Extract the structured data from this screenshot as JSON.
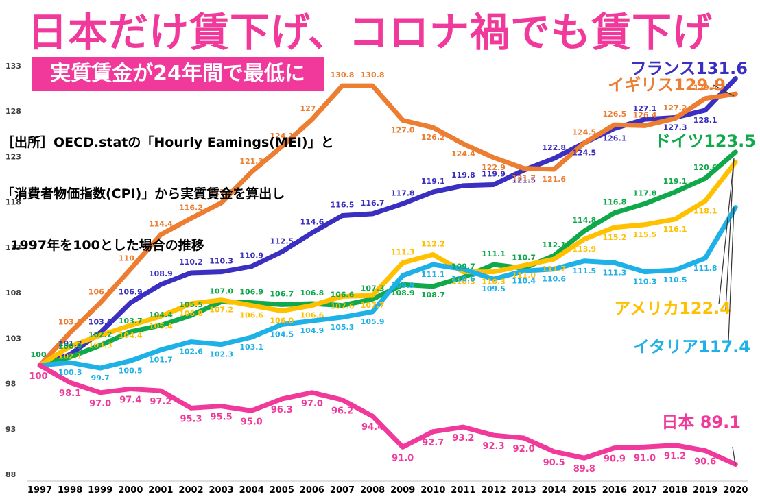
{
  "header": {
    "title": "日本だけ賃下げ、コロナ禍でも賃下げ",
    "subtitle": "実質賃金が24年間で最低に",
    "source_lines": [
      "［出所］OECD.statの「Hourly Eamings(MEI)」と",
      "「消費者物価指数(CPI)」から実質賃金を算出し",
      "  1997年を100とした場合の推移"
    ]
  },
  "chart_data": {
    "type": "line",
    "x": [
      "1997",
      "1998",
      "1999",
      "2000",
      "2001",
      "2002",
      "2003",
      "2004",
      "2005",
      "2006",
      "2007",
      "2008",
      "2009",
      "2010",
      "2011",
      "2012",
      "2013",
      "2014",
      "2015",
      "2016",
      "2017",
      "2018",
      "2019",
      "2020"
    ],
    "ylim": [
      88,
      133
    ],
    "yticks": [
      88,
      93,
      98,
      103,
      108,
      113,
      118,
      123,
      128,
      133
    ],
    "grid": false,
    "series": [
      {
        "name": "フランス",
        "color": "#3A2FC0",
        "end_label": "フランス131.6",
        "values": [
          100,
          101.2,
          103.6,
          106.9,
          108.9,
          110.2,
          110.3,
          110.9,
          112.5,
          114.6,
          116.5,
          116.7,
          117.8,
          119.1,
          119.8,
          119.9,
          121.5,
          122.8,
          124.5,
          126.1,
          127.1,
          127.3,
          128.1,
          131.6
        ]
      },
      {
        "name": "イギリス",
        "color": "#ED7D31",
        "end_label": "イギリス129.9",
        "values": [
          100,
          103.6,
          106.9,
          110.6,
          114.4,
          116.2,
          117.9,
          121.3,
          124.1,
          127.1,
          130.8,
          130.8,
          127.0,
          126.2,
          124.4,
          122.9,
          121.7,
          121.6,
          124.5,
          126.5,
          126.4,
          127.2,
          129.4,
          129.9
        ]
      },
      {
        "name": "ドイツ",
        "color": "#0FA84A",
        "end_label": "ドイツ123.5",
        "values": [
          100,
          100.9,
          102.2,
          103.7,
          104.4,
          105.5,
          107.0,
          106.9,
          106.7,
          106.8,
          106.6,
          107.3,
          108.9,
          108.7,
          109.7,
          111.1,
          110.7,
          112.1,
          114.8,
          116.8,
          117.8,
          119.1,
          120.6,
          123.5
        ]
      },
      {
        "name": "アメリカ",
        "color": "#FFC000",
        "end_label": "アメリカ122.4",
        "values": [
          100,
          102.1,
          103.3,
          104.4,
          105.4,
          106.8,
          107.2,
          106.6,
          106.0,
          106.6,
          107.6,
          107.7,
          111.3,
          112.2,
          110.3,
          110.3,
          111.0,
          111.7,
          113.9,
          115.2,
          115.5,
          116.1,
          118.1,
          122.4
        ]
      },
      {
        "name": "イタリア",
        "color": "#1EB1E8",
        "end_label": "イタリア117.4",
        "values": [
          100,
          100.3,
          99.7,
          100.5,
          101.7,
          102.6,
          102.3,
          103.1,
          104.5,
          104.9,
          105.3,
          105.9,
          109.9,
          111.1,
          110.6,
          109.5,
          110.4,
          110.6,
          111.5,
          111.3,
          110.3,
          110.5,
          111.8,
          117.4
        ]
      },
      {
        "name": "日本",
        "color": "#F0399A",
        "end_label": "日本 89.1",
        "values": [
          100,
          98.1,
          97.0,
          97.4,
          97.2,
          95.3,
          95.5,
          95.0,
          96.3,
          97.0,
          96.2,
          94.4,
          91.0,
          92.7,
          93.2,
          92.3,
          92.0,
          90.5,
          89.8,
          90.9,
          91.0,
          91.2,
          90.6,
          89.1
        ]
      }
    ],
    "data_labels": [
      {
        "s": 0,
        "i": 0,
        "text": "100"
      },
      {
        "s": 0,
        "i": 1,
        "text": "101.2"
      },
      {
        "s": 0,
        "i": 2,
        "text": "103.6"
      },
      {
        "s": 0,
        "i": 3,
        "text": "106.9"
      },
      {
        "s": 0,
        "i": 4,
        "text": "108.9"
      },
      {
        "s": 0,
        "i": 5,
        "text": "110.2"
      },
      {
        "s": 0,
        "i": 6,
        "text": "110.3"
      },
      {
        "s": 0,
        "i": 7,
        "text": "110.9"
      },
      {
        "s": 0,
        "i": 8,
        "text": "112.5"
      },
      {
        "s": 0,
        "i": 9,
        "text": "114.6"
      },
      {
        "s": 0,
        "i": 10,
        "text": "116.5"
      },
      {
        "s": 0,
        "i": 11,
        "text": "116.7"
      },
      {
        "s": 0,
        "i": 12,
        "text": "117.8"
      },
      {
        "s": 0,
        "i": 13,
        "text": "119.1"
      },
      {
        "s": 0,
        "i": 14,
        "text": "119.8"
      },
      {
        "s": 0,
        "i": 15,
        "text": "119.9"
      },
      {
        "s": 0,
        "i": 16,
        "text": "121.5"
      },
      {
        "s": 0,
        "i": 17,
        "text": "122.8"
      },
      {
        "s": 0,
        "i": 18,
        "text": "124.5"
      },
      {
        "s": 0,
        "i": 19,
        "text": "126.1"
      },
      {
        "s": 0,
        "i": 20,
        "text": "127.1"
      },
      {
        "s": 0,
        "i": 21,
        "text": "127.3"
      },
      {
        "s": 0,
        "i": 22,
        "text": "128.1"
      },
      {
        "s": 1,
        "i": 1,
        "text": "103.6"
      },
      {
        "s": 1,
        "i": 2,
        "text": "106.9"
      },
      {
        "s": 1,
        "i": 3,
        "text": "110.6"
      },
      {
        "s": 1,
        "i": 4,
        "text": "114.4"
      },
      {
        "s": 1,
        "i": 5,
        "text": "116.2"
      },
      {
        "s": 1,
        "i": 6,
        "text": "117.9"
      },
      {
        "s": 1,
        "i": 7,
        "text": "121.3"
      },
      {
        "s": 1,
        "i": 8,
        "text": "124.1"
      },
      {
        "s": 1,
        "i": 9,
        "text": "127.1"
      },
      {
        "s": 1,
        "i": 10,
        "text": "130.8"
      },
      {
        "s": 1,
        "i": 11,
        "text": "130.8"
      },
      {
        "s": 1,
        "i": 12,
        "text": "127.0"
      },
      {
        "s": 1,
        "i": 13,
        "text": "126.2"
      },
      {
        "s": 1,
        "i": 14,
        "text": "124.4"
      },
      {
        "s": 1,
        "i": 15,
        "text": "122.9"
      },
      {
        "s": 1,
        "i": 16,
        "text": "121.7"
      },
      {
        "s": 1,
        "i": 17,
        "text": "121.6"
      },
      {
        "s": 1,
        "i": 18,
        "text": "124.5"
      },
      {
        "s": 1,
        "i": 19,
        "text": "126.5"
      },
      {
        "s": 1,
        "i": 20,
        "text": "126.4"
      },
      {
        "s": 1,
        "i": 21,
        "text": "127.2"
      },
      {
        "s": 1,
        "i": 22,
        "text": "129.4"
      },
      {
        "s": 2,
        "i": 0,
        "text": "100"
      },
      {
        "s": 2,
        "i": 1,
        "text": "100.9"
      },
      {
        "s": 2,
        "i": 2,
        "text": "102.2"
      },
      {
        "s": 2,
        "i": 3,
        "text": "103.7"
      },
      {
        "s": 2,
        "i": 4,
        "text": "104.4"
      },
      {
        "s": 2,
        "i": 5,
        "text": "105.5"
      },
      {
        "s": 2,
        "i": 6,
        "text": "107.0"
      },
      {
        "s": 2,
        "i": 7,
        "text": "106.9"
      },
      {
        "s": 2,
        "i": 8,
        "text": "106.7"
      },
      {
        "s": 2,
        "i": 9,
        "text": "106.8"
      },
      {
        "s": 2,
        "i": 10,
        "text": "106.6"
      },
      {
        "s": 2,
        "i": 11,
        "text": "107.3"
      },
      {
        "s": 2,
        "i": 12,
        "text": "108.9"
      },
      {
        "s": 2,
        "i": 13,
        "text": "108.7"
      },
      {
        "s": 2,
        "i": 14,
        "text": "109.7"
      },
      {
        "s": 2,
        "i": 15,
        "text": "111.1"
      },
      {
        "s": 2,
        "i": 16,
        "text": "110.7"
      },
      {
        "s": 2,
        "i": 17,
        "text": "112.1"
      },
      {
        "s": 2,
        "i": 18,
        "text": "114.8"
      },
      {
        "s": 2,
        "i": 19,
        "text": "116.8"
      },
      {
        "s": 2,
        "i": 20,
        "text": "117.8"
      },
      {
        "s": 2,
        "i": 21,
        "text": "119.1"
      },
      {
        "s": 2,
        "i": 22,
        "text": "120.6"
      },
      {
        "s": 3,
        "i": 1,
        "text": "102.1"
      },
      {
        "s": 3,
        "i": 2,
        "text": "103.3"
      },
      {
        "s": 3,
        "i": 3,
        "text": "104.4"
      },
      {
        "s": 3,
        "i": 4,
        "text": "105.4"
      },
      {
        "s": 3,
        "i": 5,
        "text": "106.8"
      },
      {
        "s": 3,
        "i": 6,
        "text": "107.2"
      },
      {
        "s": 3,
        "i": 7,
        "text": "106.6"
      },
      {
        "s": 3,
        "i": 8,
        "text": "106.0"
      },
      {
        "s": 3,
        "i": 9,
        "text": "106.6"
      },
      {
        "s": 3,
        "i": 10,
        "text": "107.6"
      },
      {
        "s": 3,
        "i": 11,
        "text": "107.7"
      },
      {
        "s": 3,
        "i": 12,
        "text": "111.3"
      },
      {
        "s": 3,
        "i": 13,
        "text": "112.2"
      },
      {
        "s": 3,
        "i": 14,
        "text": "110.3"
      },
      {
        "s": 3,
        "i": 15,
        "text": "110.3"
      },
      {
        "s": 3,
        "i": 16,
        "text": "111.0"
      },
      {
        "s": 3,
        "i": 17,
        "text": "111.7"
      },
      {
        "s": 3,
        "i": 18,
        "text": "113.9"
      },
      {
        "s": 3,
        "i": 19,
        "text": "115.2"
      },
      {
        "s": 3,
        "i": 20,
        "text": "115.5"
      },
      {
        "s": 3,
        "i": 21,
        "text": "116.1"
      },
      {
        "s": 3,
        "i": 22,
        "text": "118.1"
      },
      {
        "s": 4,
        "i": 1,
        "text": "100.3"
      },
      {
        "s": 4,
        "i": 2,
        "text": "99.7"
      },
      {
        "s": 4,
        "i": 3,
        "text": "100.5"
      },
      {
        "s": 4,
        "i": 4,
        "text": "101.7"
      },
      {
        "s": 4,
        "i": 5,
        "text": "102.6"
      },
      {
        "s": 4,
        "i": 6,
        "text": "102.3"
      },
      {
        "s": 4,
        "i": 7,
        "text": "103.1"
      },
      {
        "s": 4,
        "i": 8,
        "text": "104.5"
      },
      {
        "s": 4,
        "i": 9,
        "text": "104.9"
      },
      {
        "s": 4,
        "i": 10,
        "text": "105.3"
      },
      {
        "s": 4,
        "i": 11,
        "text": "105.9"
      },
      {
        "s": 4,
        "i": 12,
        "text": "109.9"
      },
      {
        "s": 4,
        "i": 13,
        "text": "111.1"
      },
      {
        "s": 4,
        "i": 14,
        "text": "110.6"
      },
      {
        "s": 4,
        "i": 15,
        "text": "109.5"
      },
      {
        "s": 4,
        "i": 16,
        "text": "110.4"
      },
      {
        "s": 4,
        "i": 17,
        "text": "110.6"
      },
      {
        "s": 4,
        "i": 18,
        "text": "111.5"
      },
      {
        "s": 4,
        "i": 19,
        "text": "111.3"
      },
      {
        "s": 4,
        "i": 20,
        "text": "110.3"
      },
      {
        "s": 4,
        "i": 21,
        "text": "110.5"
      },
      {
        "s": 4,
        "i": 22,
        "text": "111.8"
      },
      {
        "s": 5,
        "i": 0,
        "text": "100"
      },
      {
        "s": 5,
        "i": 1,
        "text": "98.1"
      },
      {
        "s": 5,
        "i": 2,
        "text": "97.0"
      },
      {
        "s": 5,
        "i": 3,
        "text": "97.4"
      },
      {
        "s": 5,
        "i": 4,
        "text": "97.2"
      },
      {
        "s": 5,
        "i": 5,
        "text": "95.3"
      },
      {
        "s": 5,
        "i": 6,
        "text": "95.5"
      },
      {
        "s": 5,
        "i": 7,
        "text": "95.0"
      },
      {
        "s": 5,
        "i": 8,
        "text": "96.3"
      },
      {
        "s": 5,
        "i": 9,
        "text": "97.0"
      },
      {
        "s": 5,
        "i": 10,
        "text": "96.2"
      },
      {
        "s": 5,
        "i": 11,
        "text": "94.4"
      },
      {
        "s": 5,
        "i": 12,
        "text": "91.0"
      },
      {
        "s": 5,
        "i": 13,
        "text": "92.7"
      },
      {
        "s": 5,
        "i": 14,
        "text": "93.2"
      },
      {
        "s": 5,
        "i": 15,
        "text": "92.3"
      },
      {
        "s": 5,
        "i": 16,
        "text": "92.0"
      },
      {
        "s": 5,
        "i": 17,
        "text": "90.5"
      },
      {
        "s": 5,
        "i": 18,
        "text": "89.8"
      },
      {
        "s": 5,
        "i": 19,
        "text": "90.9"
      },
      {
        "s": 5,
        "i": 20,
        "text": "91.0"
      },
      {
        "s": 5,
        "i": 21,
        "text": "91.2"
      },
      {
        "s": 5,
        "i": 22,
        "text": "90.6"
      }
    ]
  }
}
